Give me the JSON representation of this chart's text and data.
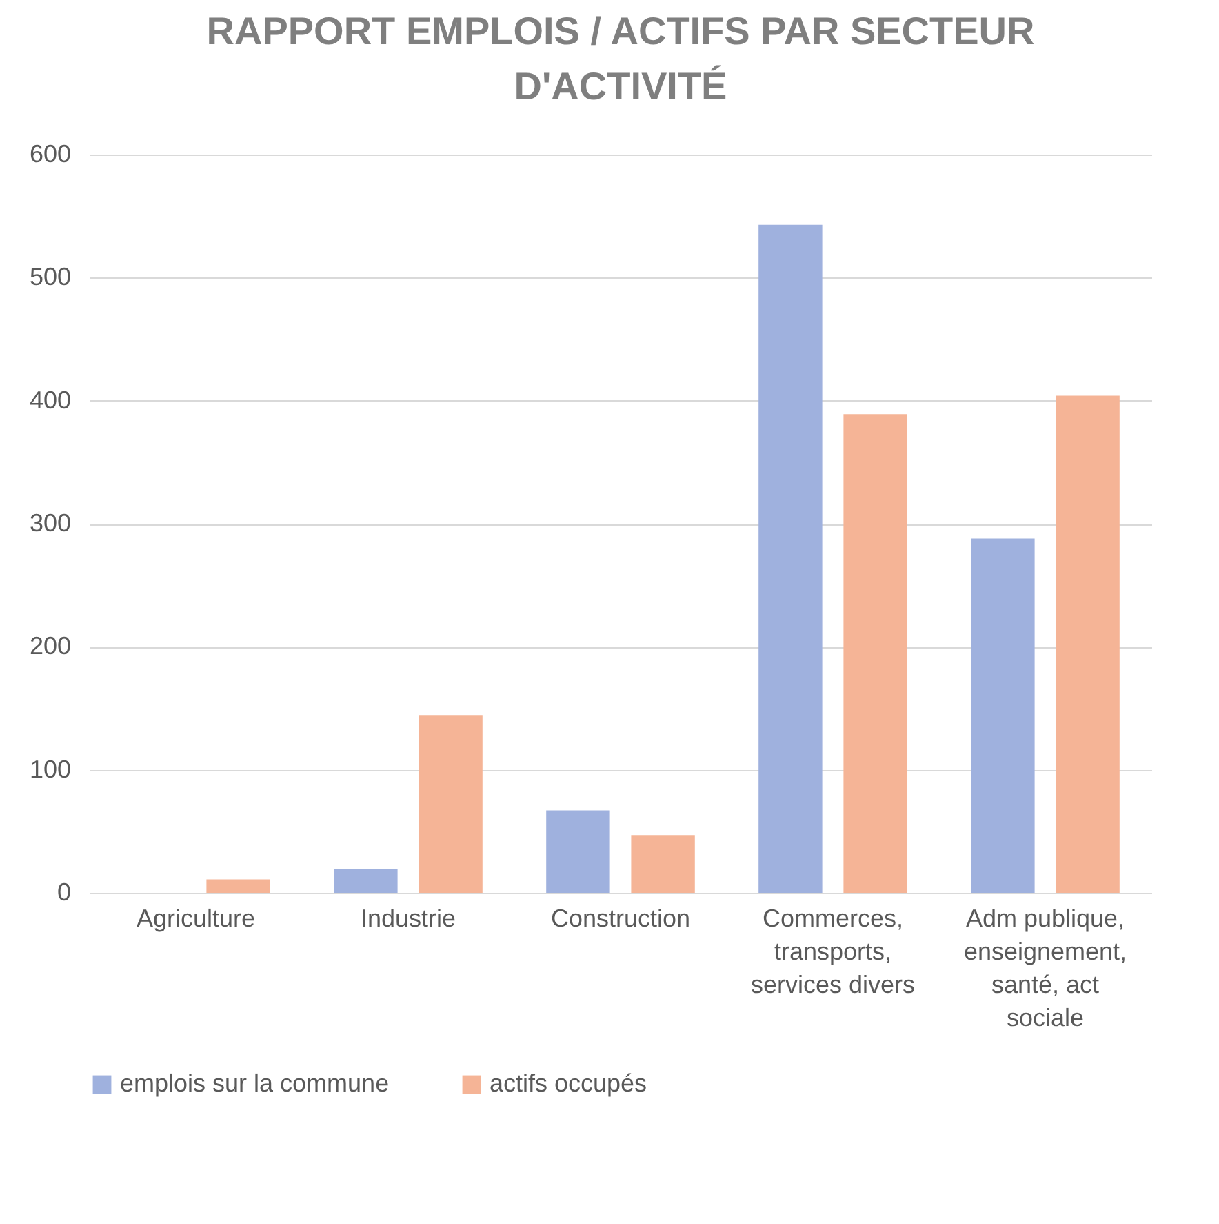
{
  "chart_data": {
    "type": "bar",
    "title": "RAPPORT EMPLOIS / ACTIFS PAR SECTEUR D'ACTIVITÉ",
    "categories": [
      "Agriculture",
      "Industrie",
      "Construction",
      "Commerces, transports, services divers",
      "Adm publique, enseignement, santé, act sociale"
    ],
    "series": [
      {
        "name": "emplois sur la commune",
        "color": "#9fb1de",
        "values": [
          0,
          19,
          67,
          543,
          288
        ]
      },
      {
        "name": "actifs occupés",
        "color": "#f5b496",
        "values": [
          11,
          144,
          47,
          389,
          404
        ]
      }
    ],
    "ylim": [
      0,
      600
    ],
    "yticks": [
      0,
      100,
      200,
      300,
      400,
      500,
      600
    ],
    "grid": "y",
    "legend": "bottom"
  }
}
